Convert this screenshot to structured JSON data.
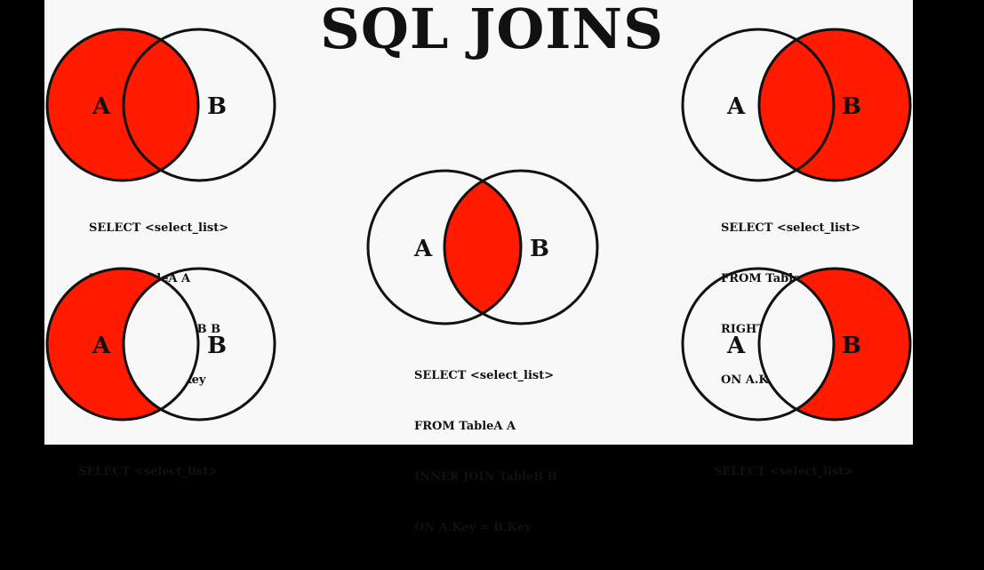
{
  "title": "SQL JOINS",
  "colors": {
    "fill": "#ff1a00",
    "stroke": "#111111",
    "background": "#f8f8f8",
    "border": "#000000"
  },
  "diagrams": [
    {
      "name": "left-join",
      "shaded": "A",
      "label_a": "A",
      "label_b": "B",
      "sql": [
        "SELECT <select_list>",
        "FROM TableA A",
        "LEFT JOIN TableB B",
        "ON A.Key = B.Key"
      ]
    },
    {
      "name": "right-join",
      "shaded": "B",
      "label_a": "A",
      "label_b": "B",
      "sql": [
        "SELECT <select_list>",
        "FROM TableA A",
        "RIGHT JOIN TableB B",
        "ON A.Key = B.Key"
      ]
    },
    {
      "name": "inner-join",
      "shaded": "AB",
      "label_a": "A",
      "label_b": "B",
      "sql": [
        "SELECT <select_list>",
        "FROM TableA A",
        "INNER JOIN TableB B",
        "ON A.Key = B.Key"
      ]
    },
    {
      "name": "left-excluding-join",
      "shaded": "A-only",
      "label_a": "A",
      "label_b": "B",
      "sql": [
        "SELECT <select_list>"
      ]
    },
    {
      "name": "right-excluding-join",
      "shaded": "B-only",
      "label_a": "A",
      "label_b": "B",
      "sql": [
        "SELECT <select_list>"
      ]
    }
  ]
}
